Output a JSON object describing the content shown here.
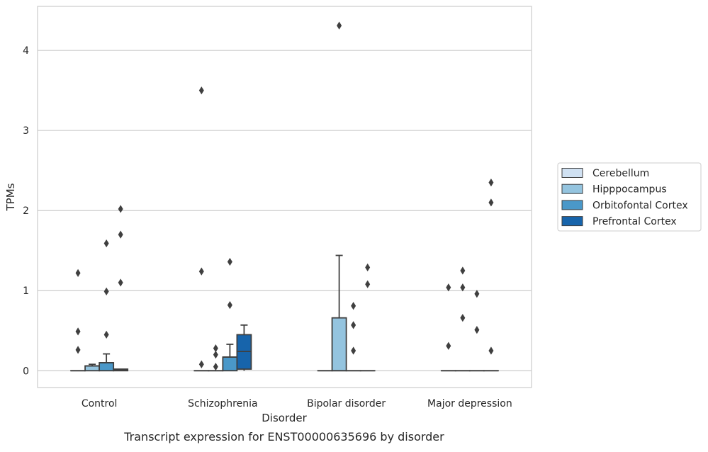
{
  "chart_data": {
    "type": "box",
    "caption": "Transcript expression for ENST00000635696 by disorder",
    "xlabel": "Disorder",
    "ylabel": "TPMs",
    "ylim": [
      -0.21,
      4.55
    ],
    "yticks": [
      0,
      1,
      2,
      3,
      4
    ],
    "grid": "horizontal",
    "legend_position": "right",
    "categories": [
      "Control",
      "Schizophrenia",
      "Bipolar disorder",
      "Major depression"
    ],
    "series": [
      {
        "name": "Cerebellum",
        "color": "#d0e1f2",
        "boxes": [
          {
            "q1": 0,
            "median": 0,
            "q3": 0,
            "whisker_low": 0,
            "whisker_high": 0,
            "outliers": [
              0.26,
              0.49,
              1.22
            ]
          },
          {
            "q1": 0,
            "median": 0,
            "q3": 0,
            "whisker_low": 0,
            "whisker_high": 0,
            "outliers": [
              0.08,
              1.24,
              3.5
            ]
          },
          {
            "q1": 0,
            "median": 0,
            "q3": 0,
            "whisker_low": 0,
            "whisker_high": 0,
            "outliers": []
          },
          {
            "q1": 0,
            "median": 0,
            "q3": 0,
            "whisker_low": 0,
            "whisker_high": 0,
            "outliers": [
              0.31,
              1.04
            ]
          }
        ]
      },
      {
        "name": "Hipppocampus",
        "color": "#94c4df",
        "boxes": [
          {
            "q1": 0,
            "median": 0.06,
            "q3": 0.06,
            "whisker_low": 0,
            "whisker_high": 0.08,
            "outliers": []
          },
          {
            "q1": 0,
            "median": 0,
            "q3": 0,
            "whisker_low": 0,
            "whisker_high": 0,
            "outliers": [
              0.05,
              0.2,
              0.28
            ]
          },
          {
            "q1": 0,
            "median": 0,
            "q3": 0.66,
            "whisker_low": 0,
            "whisker_high": 1.44,
            "outliers": [
              4.31
            ]
          },
          {
            "q1": 0,
            "median": 0,
            "q3": 0,
            "whisker_low": 0,
            "whisker_high": 0,
            "outliers": [
              0.66,
              1.04,
              1.25
            ]
          }
        ]
      },
      {
        "name": "Orbitofontal Cortex",
        "color": "#4a98c9",
        "boxes": [
          {
            "q1": 0,
            "median": 0.1,
            "q3": 0.1,
            "whisker_low": 0,
            "whisker_high": 0.21,
            "outliers": [
              0.45,
              0.99,
              1.59
            ]
          },
          {
            "q1": 0,
            "median": 0.17,
            "q3": 0.17,
            "whisker_low": 0,
            "whisker_high": 0.33,
            "outliers": [
              0.82,
              1.36
            ]
          },
          {
            "q1": 0,
            "median": 0,
            "q3": 0,
            "whisker_low": 0,
            "whisker_high": 0,
            "outliers": [
              0.25,
              0.57,
              0.81
            ]
          },
          {
            "q1": 0,
            "median": 0,
            "q3": 0,
            "whisker_low": 0,
            "whisker_high": 0,
            "outliers": [
              0.51,
              0.96
            ]
          }
        ]
      },
      {
        "name": "Prefrontal Cortex",
        "color": "#1764ab",
        "boxes": [
          {
            "q1": 0,
            "median": 0.01,
            "q3": 0.02,
            "whisker_low": 0,
            "whisker_high": 0.02,
            "outliers": [
              1.1,
              1.7,
              2.02
            ]
          },
          {
            "q1": 0.02,
            "median": 0.24,
            "q3": 0.45,
            "whisker_low": 0,
            "whisker_high": 0.57,
            "outliers": []
          },
          {
            "q1": 0,
            "median": 0,
            "q3": 0,
            "whisker_low": 0,
            "whisker_high": 0,
            "outliers": [
              1.08,
              1.29
            ]
          },
          {
            "q1": 0,
            "median": 0,
            "q3": 0,
            "whisker_low": 0,
            "whisker_high": 0,
            "outliers": [
              0.25,
              2.1,
              2.35
            ]
          }
        ]
      }
    ]
  }
}
